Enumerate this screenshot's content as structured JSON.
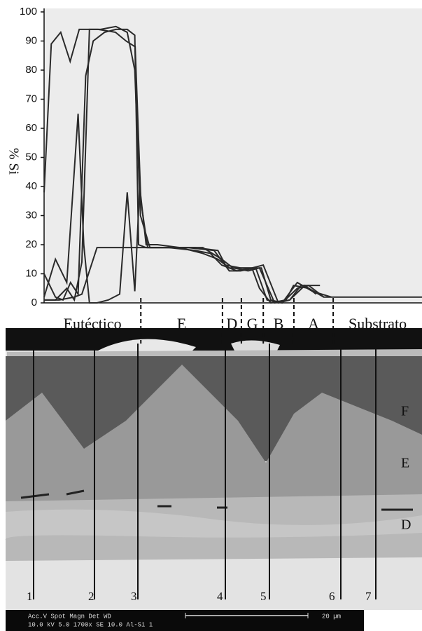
{
  "chart_data": {
    "type": "line",
    "y_label": "% Si",
    "xlim": [
      0,
      100
    ],
    "ylim": [
      0,
      100
    ],
    "yticks": [
      0,
      10,
      20,
      30,
      40,
      50,
      60,
      70,
      80,
      90,
      100
    ],
    "regions": [
      "Eutéctico",
      "E",
      "D",
      "G",
      "B",
      "A",
      "Substrato"
    ],
    "boundaries": [
      25.6,
      47.2,
      52.2,
      58,
      66.1,
      76.5
    ],
    "series": [
      {
        "color": "#2a2a2a",
        "x": [
          0,
          1.9,
          4.4,
          6.9,
          9.3,
          14.3,
          18.9,
          21.7,
          24.1,
          25.6,
          27.4,
          32,
          40,
          46,
          48,
          52,
          55,
          57,
          60,
          64,
          66,
          70,
          74,
          78,
          100
        ],
        "values": [
          38,
          89,
          93,
          83,
          94,
          94,
          93,
          90,
          88,
          35,
          19,
          19,
          19,
          18,
          13,
          12,
          12,
          5,
          0,
          1,
          6,
          5,
          2,
          2,
          2
        ]
      },
      {
        "color": "#2a2a2a",
        "x": [
          0,
          3,
          6,
          9,
          10.5,
          12,
          14,
          17,
          20,
          22,
          24,
          25.3,
          27,
          30,
          36,
          42,
          46,
          49,
          53,
          57.5,
          60,
          63,
          67,
          71,
          76
        ],
        "values": [
          2,
          15,
          7,
          65,
          20,
          0,
          0,
          1,
          3,
          38,
          4,
          40,
          20,
          20,
          19,
          17,
          15,
          12,
          12,
          12,
          1,
          0,
          7,
          4,
          2
        ]
      },
      {
        "color": "#2a2a2a",
        "x": [
          0,
          3,
          5,
          7,
          9,
          11,
          13,
          16,
          19,
          22,
          24,
          25,
          27,
          33,
          40,
          44,
          47,
          51,
          55,
          58,
          62,
          65,
          68,
          73
        ],
        "values": [
          10,
          2,
          1,
          7,
          3,
          78,
          90,
          93,
          94,
          94,
          92,
          20,
          19,
          19,
          18,
          17,
          13,
          11,
          12,
          13,
          0,
          1,
          6,
          6
        ]
      },
      {
        "color": "#2a2a2a",
        "x": [
          0,
          4,
          8,
          10,
          14,
          18,
          20,
          23,
          25,
          26,
          30,
          38,
          45,
          49,
          52,
          56,
          59,
          63,
          67,
          70,
          74
        ],
        "values": [
          1,
          1,
          2,
          3,
          19,
          19,
          19,
          19,
          19,
          19,
          19,
          19,
          18,
          11,
          11,
          12,
          1,
          0,
          5,
          6,
          2
        ]
      },
      {
        "color": "#2a2a2a",
        "x": [
          0,
          3,
          6,
          8,
          10,
          12,
          15,
          19,
          22,
          24,
          25.5,
          28,
          35,
          42,
          47,
          50,
          54,
          57,
          61,
          65,
          69,
          72
        ],
        "values": [
          1,
          1,
          5,
          1,
          14,
          94,
          94,
          95,
          93,
          80,
          30,
          19,
          19,
          19,
          15,
          12,
          11,
          12,
          0,
          1,
          6,
          3
        ]
      }
    ]
  },
  "image": {
    "layer_labels": [
      "F",
      "E",
      "D"
    ],
    "line_labels": [
      "1",
      "2",
      "3",
      "4",
      "5",
      "6",
      "7"
    ],
    "info_line1": "Acc.V   Spot Magn     Det   WD",
    "info_line2": "10.0 kV 5.0   1700x     SE    10.0  Al-Si 1",
    "scale_label": "20 µm"
  }
}
